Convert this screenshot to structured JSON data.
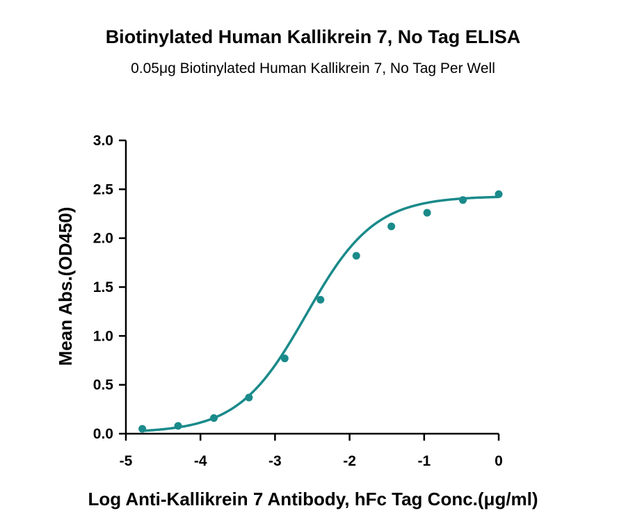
{
  "chart_data": {
    "type": "scatter",
    "title": "Biotinylated Human Kallikrein 7, No Tag ELISA",
    "subtitle": "0.05μg Biotinylated Human Kallikrein 7, No Tag Per Well",
    "xlabel": "Log Anti-Kallikrein 7 Antibody, hFc Tag Conc.(μg/ml)",
    "ylabel": "Mean Abs.(OD450)",
    "xlim": [
      -5,
      0
    ],
    "ylim": [
      0.0,
      3.0
    ],
    "x_ticks": [
      "-5",
      "-4",
      "-3",
      "-2",
      "-1",
      "0"
    ],
    "y_ticks": [
      "0.0",
      "0.5",
      "1.0",
      "1.5",
      "2.0",
      "2.5",
      "3.0"
    ],
    "grid": false,
    "legend": "none",
    "series": [
      {
        "points": [
          {
            "x": -4.78,
            "y": 0.05
          },
          {
            "x": -4.3,
            "y": 0.08
          },
          {
            "x": -3.82,
            "y": 0.16
          },
          {
            "x": -3.35,
            "y": 0.37
          },
          {
            "x": -2.87,
            "y": 0.77
          },
          {
            "x": -2.39,
            "y": 1.37
          },
          {
            "x": -1.91,
            "y": 1.82
          },
          {
            "x": -1.44,
            "y": 2.12
          },
          {
            "x": -0.96,
            "y": 2.26
          },
          {
            "x": -0.48,
            "y": 2.39
          },
          {
            "x": 0.0,
            "y": 2.45
          }
        ],
        "fit_curve": {
          "model": "four-parameter logistic",
          "bottom": 0.01,
          "top": 2.43,
          "log_ec50": -2.58,
          "hill_slope": 0.95
        }
      }
    ],
    "colors": {
      "series": "#1a8a8a",
      "axis": "#000000"
    }
  }
}
